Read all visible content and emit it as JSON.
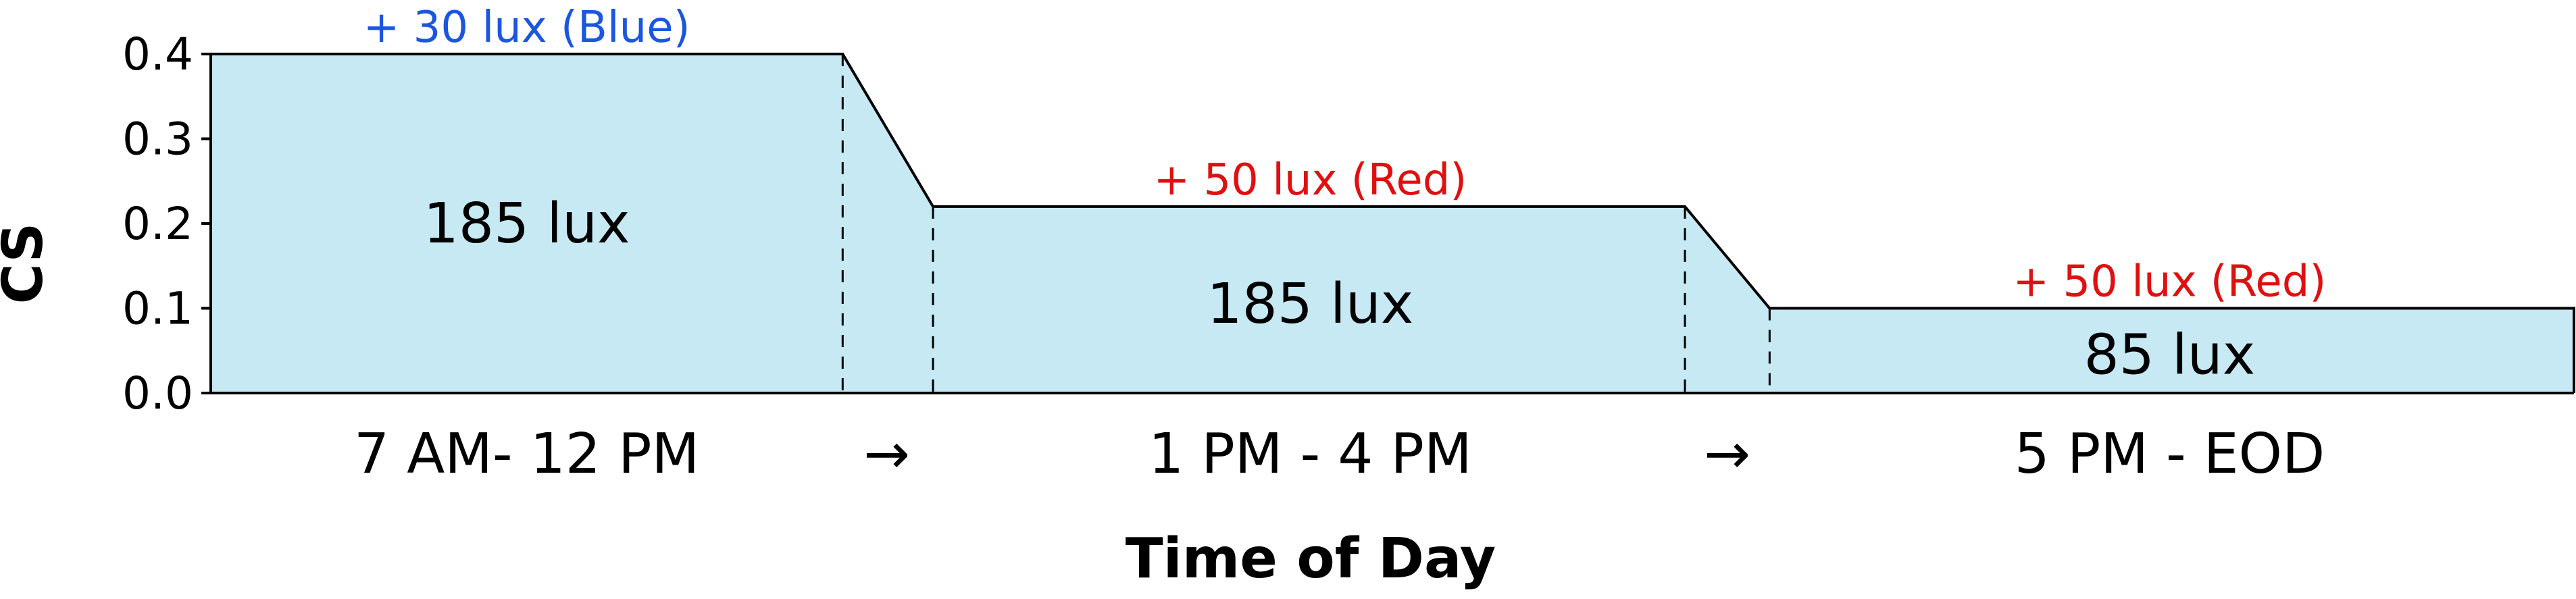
{
  "chart_data": {
    "type": "area",
    "xlabel": "Time of Day",
    "ylabel": "CS",
    "ylim": [
      0,
      0.4
    ],
    "yticks": [
      "0.0",
      "0.1",
      "0.2",
      "0.3",
      "0.4"
    ],
    "grid": false,
    "fill_color": "#c6e9f4",
    "line_color": "#000000",
    "points": [
      {
        "t": 0.0,
        "cs": 0.4
      },
      {
        "t": 1.0,
        "cs": 0.4
      },
      {
        "t": 1.143,
        "cs": 0.22
      },
      {
        "t": 2.333,
        "cs": 0.22
      },
      {
        "t": 2.467,
        "cs": 0.1
      },
      {
        "t": 3.74,
        "cs": 0.1
      }
    ],
    "transition_boundaries": [
      1.0,
      1.143,
      2.333,
      2.467
    ],
    "periods": [
      {
        "label": "7 AM- 12 PM",
        "t": 0.5
      },
      {
        "label": "→",
        "t": 1.07
      },
      {
        "label": "1 PM - 4 PM",
        "t": 1.74
      },
      {
        "label": "→",
        "t": 2.4
      },
      {
        "label": "5 PM - EOD",
        "t": 3.1
      }
    ],
    "regions": [
      {
        "label": "185 lux",
        "t": 0.5,
        "cs": 0.2
      },
      {
        "label": "185 lux",
        "t": 1.74,
        "cs": 0.105
      },
      {
        "label": "85 lux",
        "t": 3.1,
        "cs": 0.045
      }
    ],
    "annotations": [
      {
        "label": "+ 30 lux (Blue)",
        "t": 0.5,
        "cs": 0.4,
        "color": "#1a56e0"
      },
      {
        "label": "+ 50 lux (Red)",
        "t": 1.74,
        "cs": 0.22,
        "color": "#e01010"
      },
      {
        "label": "+ 50 lux (Red)",
        "t": 3.1,
        "cs": 0.1,
        "color": "#e01010"
      }
    ]
  }
}
